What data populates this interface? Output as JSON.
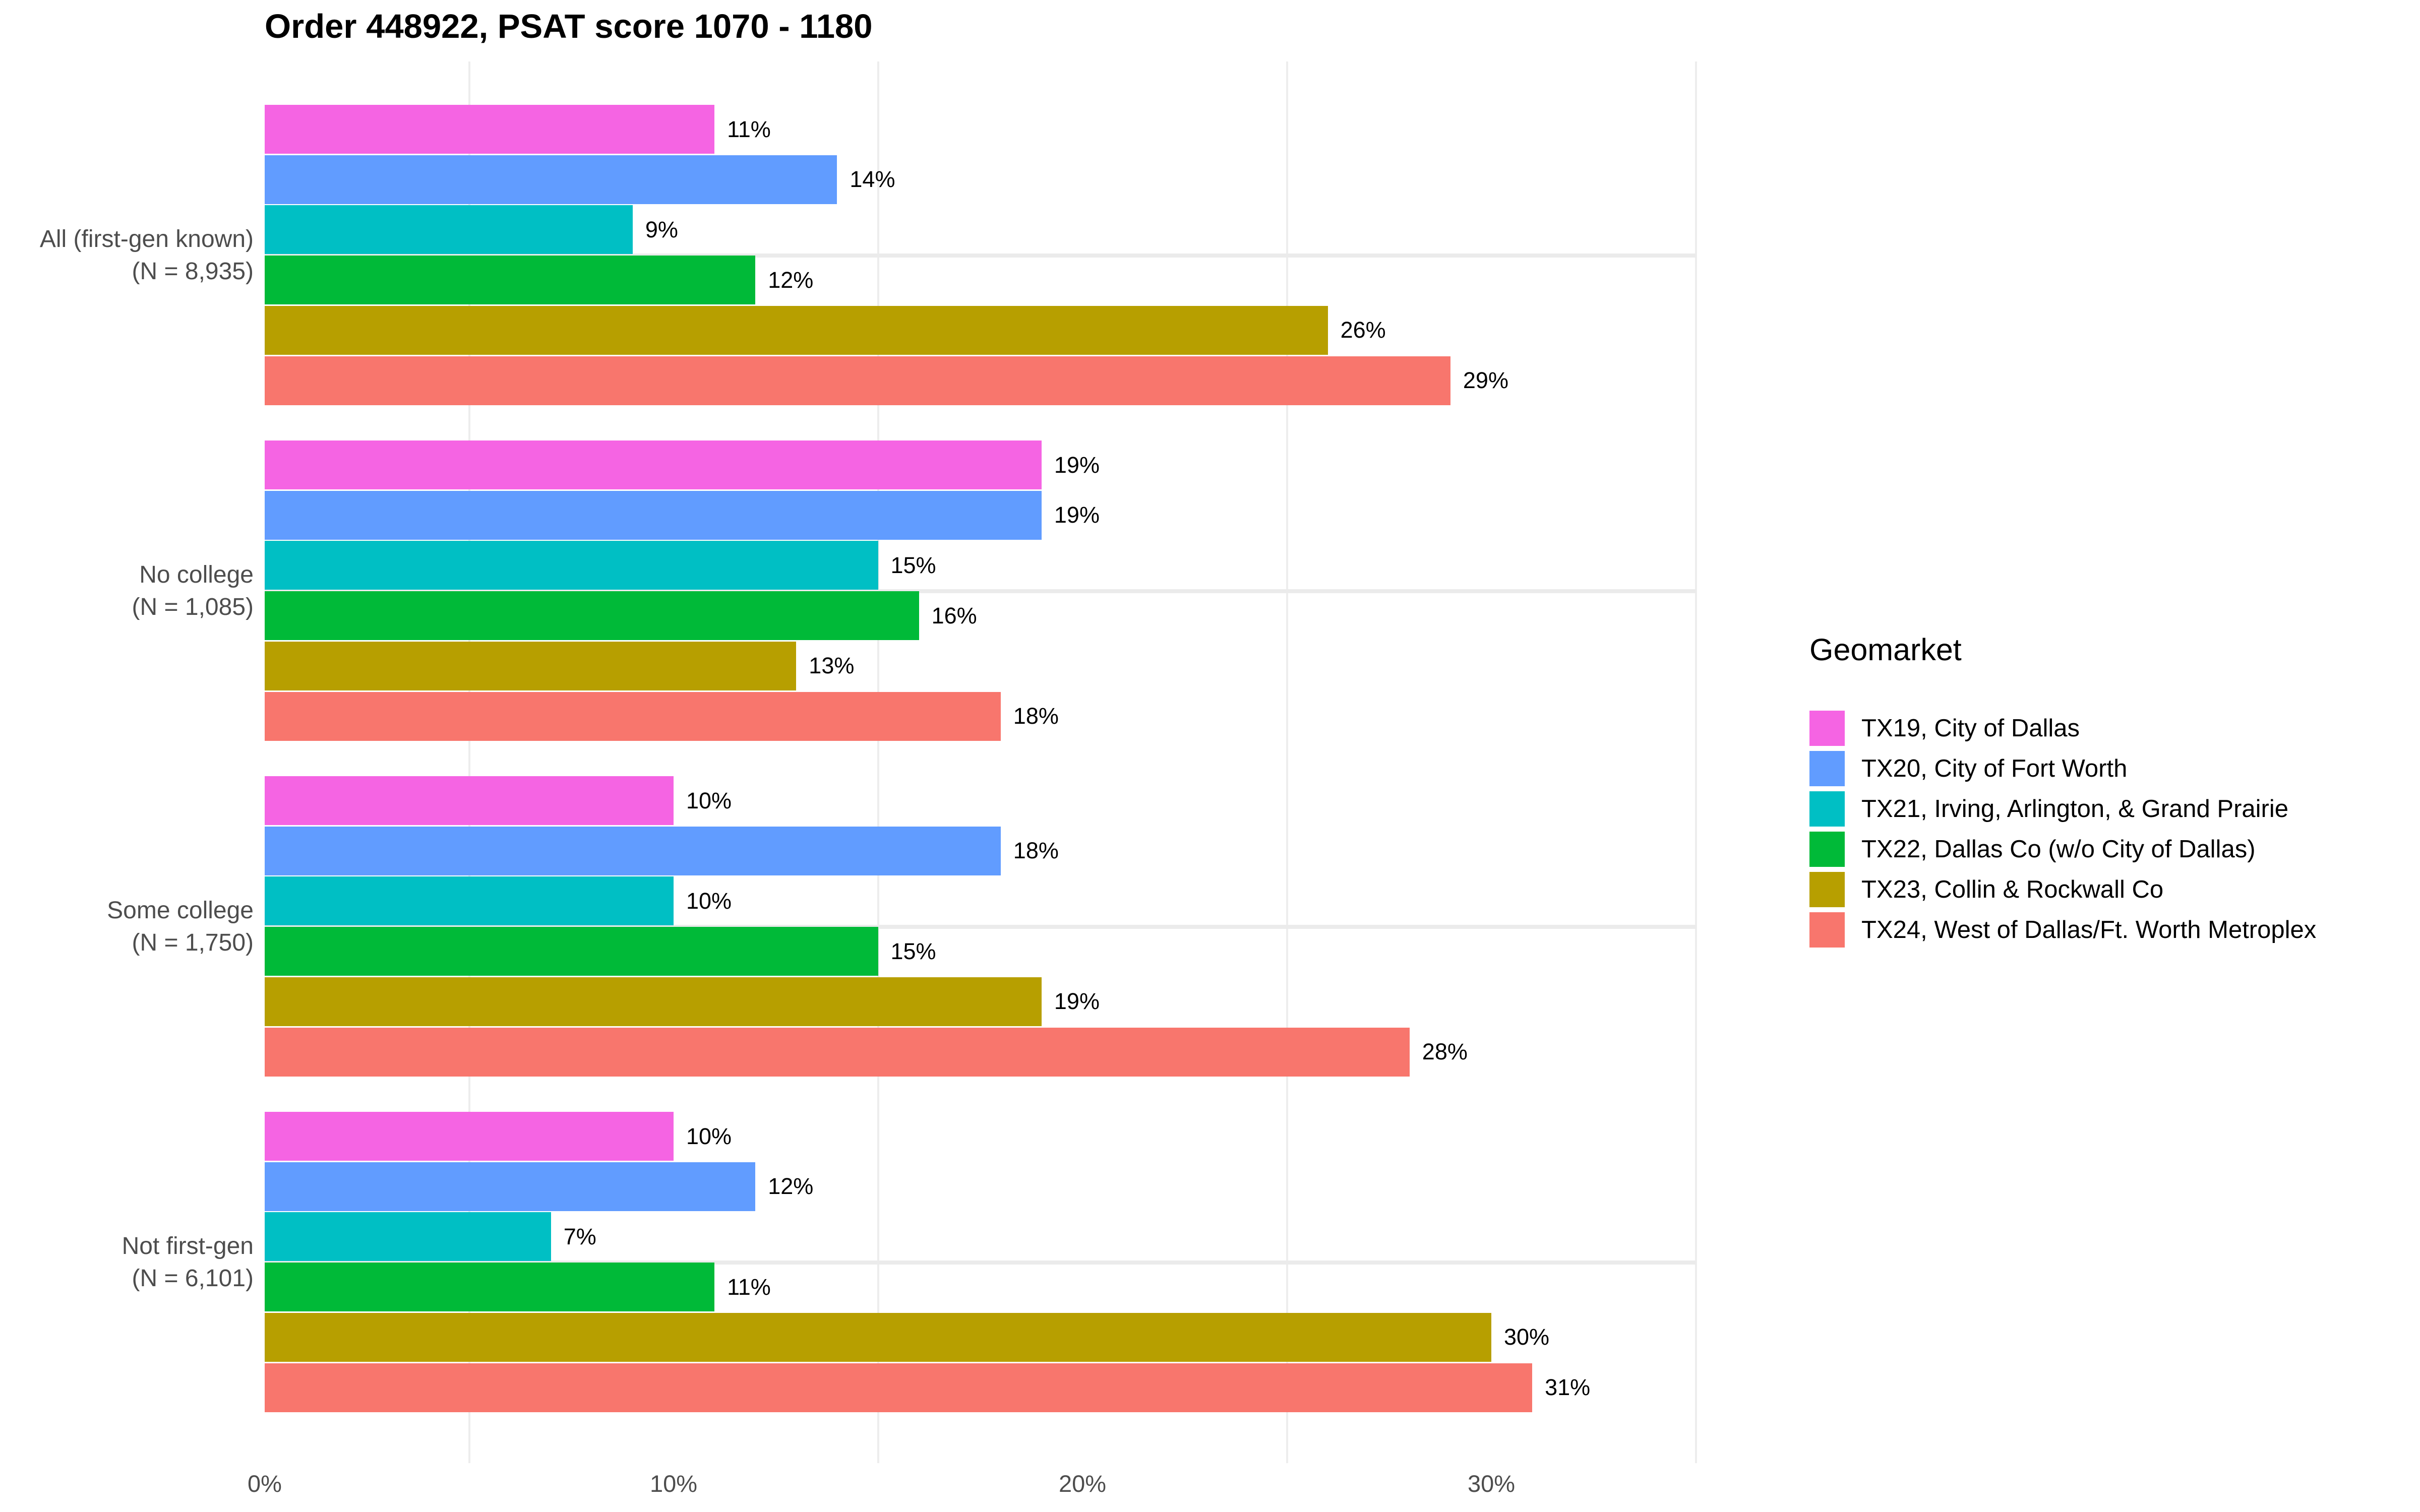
{
  "title": "Order 448922, PSAT score 1070 - 1180",
  "legend": {
    "title": "Geomarket",
    "position": "right"
  },
  "x_axis": {
    "ticks": [
      {
        "label": "0%",
        "value": 0
      },
      {
        "label": "10%",
        "value": 10
      },
      {
        "label": "20%",
        "value": 20
      },
      {
        "label": "30%",
        "value": 30
      }
    ],
    "minor_gridlines": [
      5,
      15,
      25,
      35
    ]
  },
  "chart_data": {
    "type": "bar",
    "orientation": "horizontal",
    "title": "Order 448922, PSAT score 1070 - 1180",
    "xlabel": "",
    "ylabel": "",
    "xlim": [
      0,
      35
    ],
    "grid": "vertical minor gridlines + horizontal gridlines at category centers",
    "legend_position": "right",
    "value_suffix": "%",
    "categories": [
      {
        "line1": "All (first-gen known)",
        "line2": "(N = 8,935)"
      },
      {
        "line1": "No college",
        "line2": "(N = 1,085)"
      },
      {
        "line1": "Some college",
        "line2": "(N = 1,750)"
      },
      {
        "line1": "Not first-gen",
        "line2": "(N = 6,101)"
      }
    ],
    "series": [
      {
        "name": "TX19, City of Dallas",
        "color": "#F564E3",
        "values": [
          11,
          19,
          10,
          10
        ],
        "labels": [
          "11%",
          "19%",
          "10%",
          "10%"
        ]
      },
      {
        "name": "TX20, City of Fort Worth",
        "color": "#619CFF",
        "values": [
          14,
          19,
          18,
          12
        ],
        "labels": [
          "14%",
          "19%",
          "18%",
          "12%"
        ]
      },
      {
        "name": "TX21, Irving, Arlington, & Grand Prairie",
        "color": "#00BFC4",
        "values": [
          9,
          15,
          10,
          7
        ],
        "labels": [
          "9%",
          "15%",
          "10%",
          "7%"
        ]
      },
      {
        "name": "TX22, Dallas Co (w/o City of Dallas)",
        "color": "#00BA38",
        "values": [
          12,
          16,
          15,
          11
        ],
        "labels": [
          "12%",
          "16%",
          "15%",
          "11%"
        ]
      },
      {
        "name": "TX23, Collin & Rockwall Co",
        "color": "#B79F00",
        "values": [
          26,
          13,
          19,
          30
        ],
        "labels": [
          "26%",
          "13%",
          "19%",
          "30%"
        ]
      },
      {
        "name": "TX24, West of Dallas/Ft. Worth Metroplex",
        "color": "#F8766D",
        "values": [
          29,
          18,
          28,
          31
        ],
        "labels": [
          "29%",
          "18%",
          "28%",
          "31%"
        ]
      }
    ]
  },
  "colors": {
    "axis_text": "#4d4d4d",
    "gridline_minor": "#ededed",
    "gridline_major_h": "#ebebeb",
    "background": "#ffffff"
  }
}
